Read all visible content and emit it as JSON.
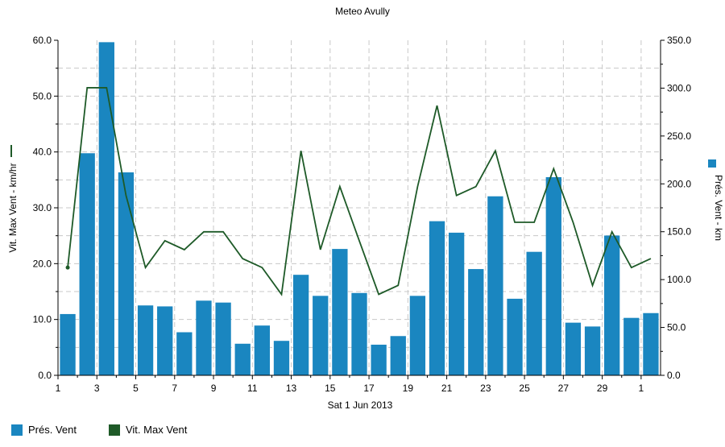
{
  "chart_data": {
    "type": "bar+line",
    "title": "Meteo  Avully",
    "xlabel": "Sat 1 Jun 2013",
    "x_tick_labels": [
      "1",
      "3",
      "5",
      "7",
      "9",
      "11",
      "13",
      "15",
      "17",
      "19",
      "21",
      "23",
      "25",
      "27",
      "29",
      "1"
    ],
    "categories": [
      "1",
      "2",
      "3",
      "4",
      "5",
      "6",
      "7",
      "8",
      "9",
      "10",
      "11",
      "12",
      "13",
      "14",
      "15",
      "16",
      "17",
      "18",
      "19",
      "20",
      "21",
      "22",
      "23",
      "24",
      "25",
      "26",
      "27",
      "28",
      "29",
      "30",
      "1"
    ],
    "left_axis": {
      "label": "Vit. Max Vent - km/hr",
      "ylim": [
        0,
        60
      ],
      "ticks": [
        "0.0",
        "10.0",
        "20.0",
        "30.0",
        "40.0",
        "50.0",
        "60.0"
      ]
    },
    "right_axis": {
      "label": "Prés. Vent - km",
      "ylim": [
        0,
        350
      ],
      "ticks": [
        "0.0",
        "50.0",
        "100.0",
        "150.0",
        "200.0",
        "250.0",
        "300.0",
        "350.0"
      ]
    },
    "grid": true,
    "legend_position": "bottom-left",
    "series": [
      {
        "name": "Prés. Vent",
        "type": "bar",
        "axis": "right",
        "color": "#1a86c0",
        "values": [
          64,
          232,
          348,
          212,
          73,
          72,
          45,
          78,
          76,
          33,
          52,
          36,
          105,
          83,
          132,
          86,
          32,
          41,
          83,
          161,
          149,
          111,
          187,
          80,
          129,
          207,
          55,
          51,
          146,
          60,
          65
        ]
      },
      {
        "name": "Vit. Max Vent",
        "type": "line",
        "axis": "left",
        "color": "#1e5a28",
        "values": [
          19.3,
          51.5,
          51.5,
          32.2,
          19.3,
          24.1,
          22.5,
          25.7,
          25.7,
          20.9,
          19.3,
          14.5,
          40.2,
          22.5,
          33.8,
          24.1,
          14.5,
          16.1,
          33.8,
          48.3,
          32.2,
          33.8,
          40.2,
          27.4,
          27.4,
          37.0,
          27.4,
          16.1,
          25.7,
          19.3,
          20.9
        ]
      }
    ]
  }
}
